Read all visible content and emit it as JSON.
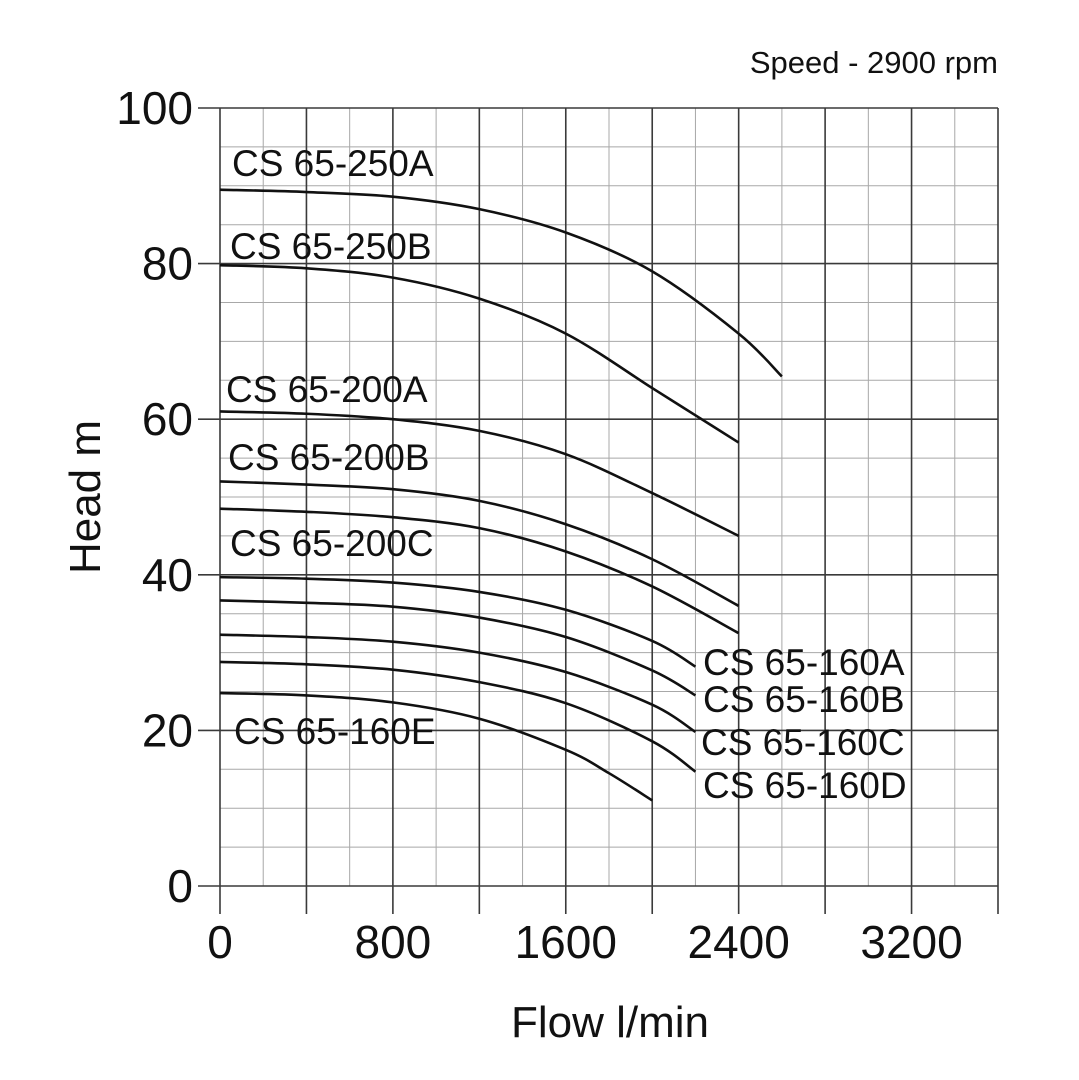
{
  "chart_data": {
    "type": "line",
    "title": "",
    "subtitle": "Speed - 2900 rpm",
    "xlabel": "Flow l/min",
    "ylabel": "Head m",
    "xlim": [
      0,
      3600
    ],
    "ylim": [
      0,
      100
    ],
    "xticks": [
      0,
      800,
      1600,
      2400,
      3200
    ],
    "yticks": [
      0,
      20,
      40,
      60,
      80,
      100
    ],
    "grid": true,
    "legend": "none (curve labels placed next to curves)",
    "series": [
      {
        "name": "CS 65-250A",
        "x": [
          0,
          400,
          800,
          1200,
          1600,
          2000,
          2400,
          2600
        ],
        "y": [
          89.5,
          89.2,
          88.6,
          87,
          84,
          79,
          71,
          65.5
        ]
      },
      {
        "name": "CS 65-250B",
        "x": [
          0,
          400,
          800,
          1200,
          1600,
          2000,
          2200,
          2400
        ],
        "y": [
          79.8,
          79.4,
          78.2,
          75.5,
          71,
          64,
          60.5,
          57
        ]
      },
      {
        "name": "CS 65-200A",
        "x": [
          0,
          400,
          800,
          1200,
          1600,
          2000,
          2400
        ],
        "y": [
          61,
          60.7,
          60,
          58.5,
          55.5,
          50.5,
          45
        ]
      },
      {
        "name": "CS 65-200B",
        "x": [
          0,
          400,
          800,
          1200,
          1600,
          2000,
          2400
        ],
        "y": [
          52,
          51.6,
          51,
          49.5,
          46.5,
          42,
          36
        ]
      },
      {
        "name": "CS 65-200C",
        "x": [
          0,
          400,
          800,
          1200,
          1600,
          2000,
          2400
        ],
        "y": [
          48.5,
          48.1,
          47.4,
          46,
          43,
          38.5,
          32.5
        ]
      },
      {
        "name": "CS 65-160A",
        "x": [
          0,
          400,
          800,
          1200,
          1600,
          2000,
          2200
        ],
        "y": [
          39.7,
          39.5,
          39,
          37.8,
          35.5,
          31.5,
          28.2
        ]
      },
      {
        "name": "CS 65-160B",
        "x": [
          0,
          400,
          800,
          1200,
          1600,
          2000,
          2200
        ],
        "y": [
          36.7,
          36.4,
          35.9,
          34.5,
          32,
          27.7,
          24.5
        ]
      },
      {
        "name": "CS 65-160C",
        "x": [
          0,
          400,
          800,
          1200,
          1600,
          2000,
          2200
        ],
        "y": [
          32.3,
          32,
          31.4,
          30,
          27.5,
          23.3,
          19.8
        ]
      },
      {
        "name": "CS 65-160D",
        "x": [
          0,
          400,
          800,
          1200,
          1600,
          2000,
          2200
        ],
        "y": [
          28.8,
          28.5,
          27.8,
          26.2,
          23.5,
          18.6,
          14.7
        ]
      },
      {
        "name": "CS 65-160E",
        "x": [
          0,
          400,
          800,
          1200,
          1600,
          1800,
          2000
        ],
        "y": [
          24.8,
          24.5,
          23.6,
          21.5,
          17.5,
          14.5,
          11
        ]
      }
    ]
  }
}
